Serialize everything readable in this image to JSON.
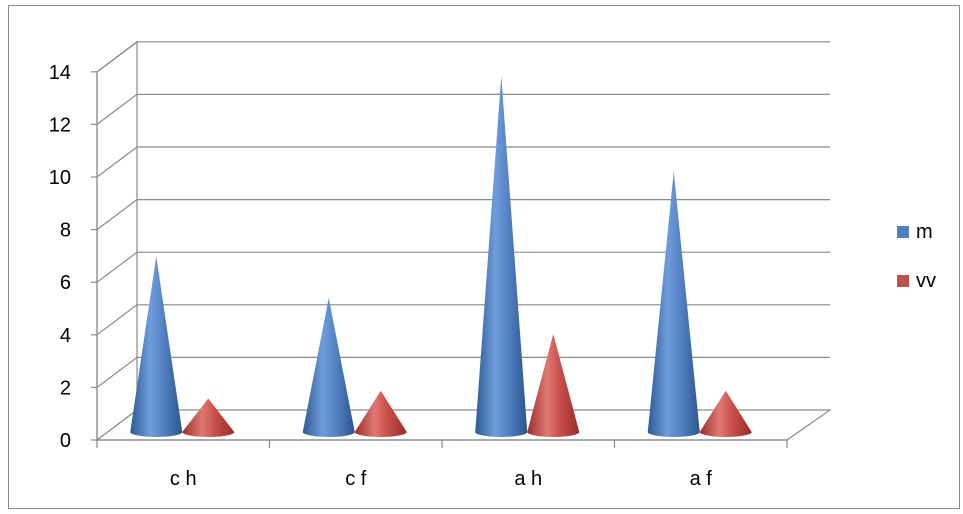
{
  "chart_data": {
    "type": "bar",
    "style": "3d-cone",
    "categories": [
      "c h",
      "c f",
      "a h",
      "a f"
    ],
    "series": [
      {
        "name": "m",
        "values": [
          6.8,
          5.2,
          13.8,
          10.1
        ],
        "color": "#4f81bd"
      },
      {
        "name": "vv",
        "values": [
          1.3,
          1.6,
          3.8,
          1.6
        ],
        "color": "#c0504d"
      }
    ],
    "title": "",
    "xlabel": "",
    "ylabel": "",
    "ylim": [
      0,
      14
    ],
    "yticks": [
      "0",
      "2",
      "4",
      "6",
      "8",
      "10",
      "12",
      "14"
    ],
    "grid": true,
    "legend_position": "right"
  }
}
